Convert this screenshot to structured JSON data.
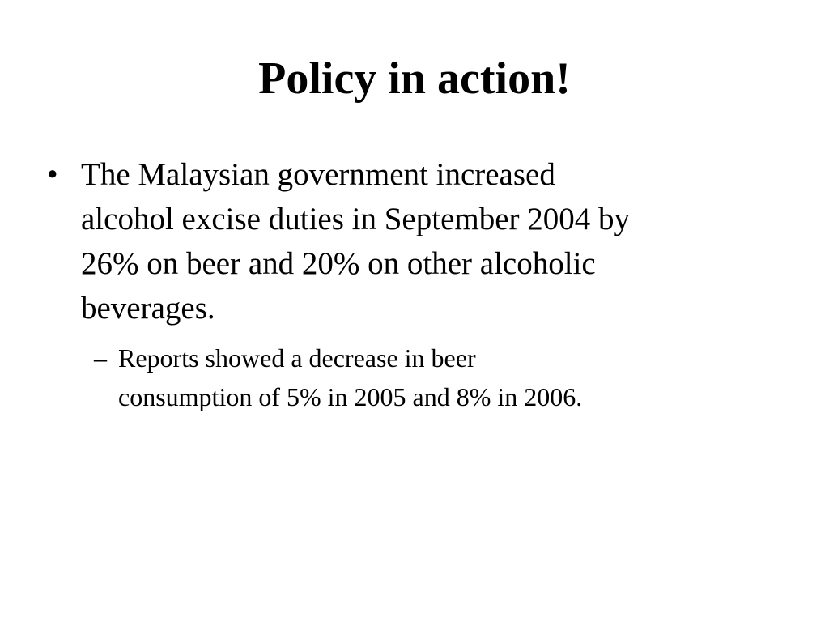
{
  "slide": {
    "title": "Policy in action!",
    "bullet": {
      "lines": [
        "The Malaysian government increased",
        "alcohol excise duties in September 2004 by",
        "26% on beer and 20% on other alcoholic",
        "beverages."
      ]
    },
    "sub_bullet": {
      "lines": [
        "Reports showed a decrease in beer",
        "consumption of 5% in 2005 and 8% in 2006."
      ]
    }
  }
}
